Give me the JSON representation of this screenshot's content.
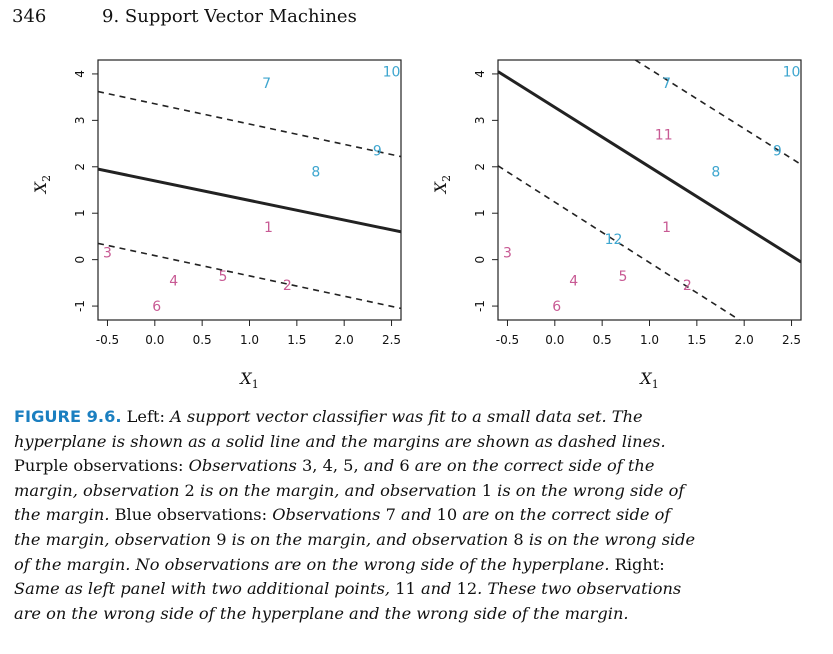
{
  "header": {
    "page_number": "346",
    "running_head": "9.  Support Vector Machines"
  },
  "colors": {
    "purple": "#c85a94",
    "blue": "#3ea6cf",
    "caption_label": "#1b7fc0",
    "line": "#222222"
  },
  "chart_data": [
    {
      "type": "scatter",
      "panel": "left",
      "xlabel": "X1",
      "ylabel": "X2",
      "xlim": [
        -0.6,
        2.6
      ],
      "ylim": [
        -1.3,
        4.3
      ],
      "xticks": [
        "-0.5",
        "0.0",
        "0.5",
        "1.0",
        "1.5",
        "2.0",
        "2.5"
      ],
      "xtick_values": [
        -0.5,
        0,
        0.5,
        1.0,
        1.5,
        2.0,
        2.5
      ],
      "yticks": [
        "-1",
        "0",
        "1",
        "2",
        "3",
        "4"
      ],
      "ytick_values": [
        -1,
        0,
        1,
        2,
        3,
        4
      ],
      "points": [
        {
          "label": "1",
          "x": 1.2,
          "y": 0.7,
          "class": "purple"
        },
        {
          "label": "2",
          "x": 1.4,
          "y": -0.55,
          "class": "purple"
        },
        {
          "label": "3",
          "x": -0.5,
          "y": 0.15,
          "class": "purple"
        },
        {
          "label": "4",
          "x": 0.2,
          "y": -0.45,
          "class": "purple"
        },
        {
          "label": "5",
          "x": 0.72,
          "y": -0.35,
          "class": "purple"
        },
        {
          "label": "6",
          "x": 0.02,
          "y": -1.0,
          "class": "purple"
        },
        {
          "label": "7",
          "x": 1.18,
          "y": 3.8,
          "class": "blue"
        },
        {
          "label": "8",
          "x": 1.7,
          "y": 1.9,
          "class": "blue"
        },
        {
          "label": "9",
          "x": 2.35,
          "y": 2.35,
          "class": "blue"
        },
        {
          "label": "10",
          "x": 2.5,
          "y": 4.05,
          "class": "blue"
        }
      ],
      "lines": [
        {
          "style": "solid",
          "x": [
            -0.6,
            2.6
          ],
          "y": [
            1.95,
            0.6
          ]
        },
        {
          "style": "dashed",
          "x": [
            -0.6,
            2.6
          ],
          "y": [
            3.62,
            2.22
          ]
        },
        {
          "style": "dashed",
          "x": [
            -0.6,
            2.6
          ],
          "y": [
            0.35,
            -1.05
          ]
        }
      ]
    },
    {
      "type": "scatter",
      "panel": "right",
      "xlabel": "X1",
      "ylabel": "X2",
      "xlim": [
        -0.6,
        2.6
      ],
      "ylim": [
        -1.3,
        4.3
      ],
      "xticks": [
        "-0.5",
        "0.0",
        "0.5",
        "1.0",
        "1.5",
        "2.0",
        "2.5"
      ],
      "xtick_values": [
        -0.5,
        0,
        0.5,
        1.0,
        1.5,
        2.0,
        2.5
      ],
      "yticks": [
        "-1",
        "0",
        "1",
        "2",
        "3",
        "4"
      ],
      "ytick_values": [
        -1,
        0,
        1,
        2,
        3,
        4
      ],
      "points": [
        {
          "label": "1",
          "x": 1.18,
          "y": 0.7,
          "class": "purple"
        },
        {
          "label": "2",
          "x": 1.4,
          "y": -0.55,
          "class": "purple"
        },
        {
          "label": "3",
          "x": -0.5,
          "y": 0.15,
          "class": "purple"
        },
        {
          "label": "4",
          "x": 0.2,
          "y": -0.45,
          "class": "purple"
        },
        {
          "label": "5",
          "x": 0.72,
          "y": -0.35,
          "class": "purple"
        },
        {
          "label": "6",
          "x": 0.02,
          "y": -1.0,
          "class": "purple"
        },
        {
          "label": "7",
          "x": 1.18,
          "y": 3.8,
          "class": "blue"
        },
        {
          "label": "8",
          "x": 1.7,
          "y": 1.9,
          "class": "blue"
        },
        {
          "label": "9",
          "x": 2.35,
          "y": 2.35,
          "class": "blue"
        },
        {
          "label": "10",
          "x": 2.5,
          "y": 4.05,
          "class": "blue"
        },
        {
          "label": "11",
          "x": 1.15,
          "y": 2.7,
          "class": "purple"
        },
        {
          "label": "12",
          "x": 0.62,
          "y": 0.45,
          "class": "blue"
        }
      ],
      "lines": [
        {
          "style": "solid",
          "x": [
            -0.6,
            2.6
          ],
          "y": [
            4.05,
            -0.05
          ]
        },
        {
          "style": "dashed",
          "x": [
            0.85,
            2.6
          ],
          "y": [
            4.3,
            2.05
          ]
        },
        {
          "style": "dashed",
          "x": [
            -0.6,
            1.95
          ],
          "y": [
            2.02,
            -1.3
          ]
        }
      ]
    }
  ],
  "caption": {
    "label": "FIGURE 9.6.",
    "lines": [
      [
        {
          "t": "FIGURE 9.6.",
          "s": "label"
        },
        {
          "t": " Left: ",
          "s": "n"
        },
        {
          "t": "A support vector classifier was fit to a small data set. The",
          "s": "i"
        }
      ],
      [
        {
          "t": "hyperplane is shown as a solid line and the margins are shown as dashed lines.",
          "s": "i"
        }
      ],
      [
        {
          "t": "Purple observations: ",
          "s": "n"
        },
        {
          "t": "Observations ",
          "s": "i"
        },
        {
          "t": "3, 4, 5,",
          "s": "n"
        },
        {
          "t": " and ",
          "s": "i"
        },
        {
          "t": "6",
          "s": "n"
        },
        {
          "t": " are on the correct side of the",
          "s": "i"
        }
      ],
      [
        {
          "t": "margin, observation ",
          "s": "i"
        },
        {
          "t": "2",
          "s": "n"
        },
        {
          "t": " is on the margin, and observation ",
          "s": "i"
        },
        {
          "t": "1",
          "s": "n"
        },
        {
          "t": " is on the wrong side of",
          "s": "i"
        }
      ],
      [
        {
          "t": "the margin.",
          "s": "i"
        },
        {
          "t": " Blue observations: ",
          "s": "n"
        },
        {
          "t": "Observations ",
          "s": "i"
        },
        {
          "t": "7",
          "s": "n"
        },
        {
          "t": " and ",
          "s": "i"
        },
        {
          "t": "10",
          "s": "n"
        },
        {
          "t": " are on the correct side of",
          "s": "i"
        }
      ],
      [
        {
          "t": "the margin, observation ",
          "s": "i"
        },
        {
          "t": "9",
          "s": "n"
        },
        {
          "t": " is on the margin, and observation ",
          "s": "i"
        },
        {
          "t": "8",
          "s": "n"
        },
        {
          "t": " is on the wrong side",
          "s": "i"
        }
      ],
      [
        {
          "t": "of the margin. No observations are on the wrong side of the hyperplane.",
          "s": "i"
        },
        {
          "t": " Right:",
          "s": "n"
        }
      ],
      [
        {
          "t": "Same as left panel with two additional points, ",
          "s": "i"
        },
        {
          "t": "11",
          "s": "n"
        },
        {
          "t": " and ",
          "s": "i"
        },
        {
          "t": "12",
          "s": "n"
        },
        {
          "t": ". These two observations",
          "s": "i"
        }
      ],
      [
        {
          "t": "are on the wrong side of the hyperplane and the wrong side of the margin.",
          "s": "i"
        }
      ]
    ]
  }
}
